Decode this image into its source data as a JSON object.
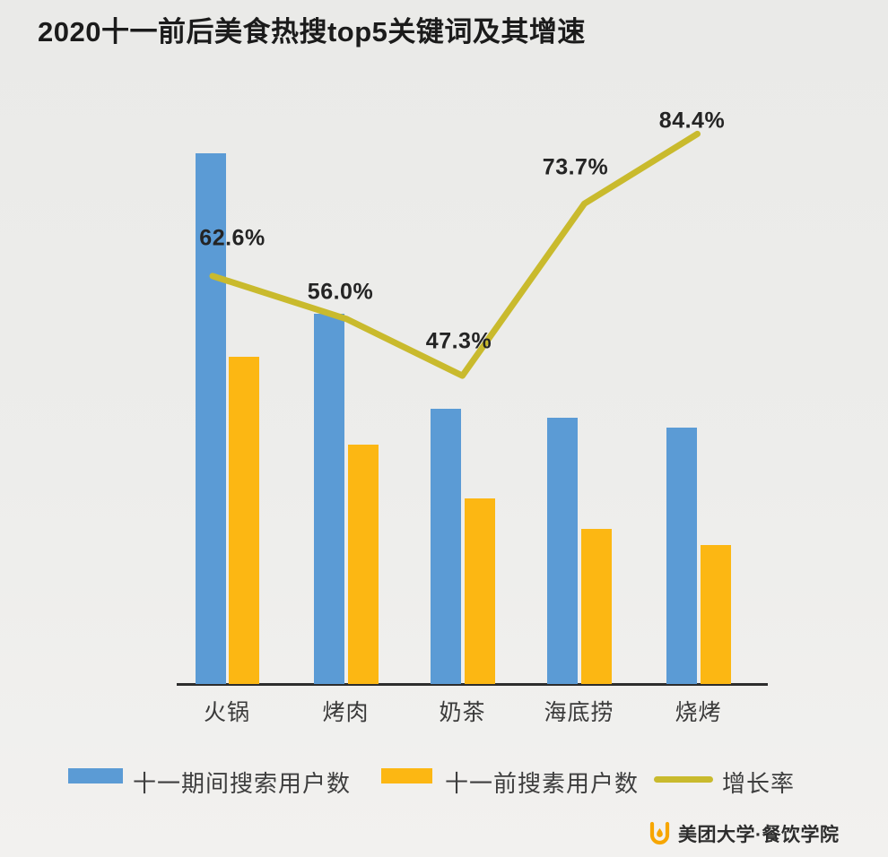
{
  "title": "2020十一前后美食热搜top5关键词及其增速",
  "chart_data": {
    "type": "bar",
    "subtype": "grouped-bars-with-line-overlay",
    "categories": [
      "火锅",
      "烤肉",
      "奶茶",
      "海底捞",
      "烧烤"
    ],
    "series": [
      {
        "name": "十一期间搜索用户数",
        "kind": "bar",
        "color": "#5b9bd5",
        "values": [
          592,
          413,
          307,
          297,
          286
        ]
      },
      {
        "name": "十一前搜素用户数",
        "kind": "bar",
        "color": "#fcb713",
        "values": [
          365,
          267,
          207,
          173,
          155
        ]
      },
      {
        "name": "增长率",
        "kind": "line",
        "color": "#c9ba2d",
        "values": [
          62.6,
          56.0,
          47.3,
          73.7,
          84.4
        ],
        "labels": [
          "62.6%",
          "56.0%",
          "47.3%",
          "73.7%",
          "84.4%"
        ]
      }
    ],
    "value_axis_note": "bar units not labeled in source; values are relative estimates",
    "ylim_percent": [
      0,
      105
    ],
    "grid": false,
    "legend_position": "bottom"
  },
  "legend": {
    "items": [
      {
        "label": "十一期间搜索用户数",
        "swatch": "blue-rect"
      },
      {
        "label": "十一前搜素用户数",
        "swatch": "yellow-rect"
      },
      {
        "label": "增长率",
        "swatch": "olive-line"
      }
    ]
  },
  "footer": {
    "brand": "美团大学·餐饮学院",
    "icon": "meituan-tulip-icon",
    "icon_color": "#f7a600"
  },
  "colors": {
    "background": "#ececea",
    "bar_blue": "#5b9bd5",
    "bar_yellow": "#fcb713",
    "growth_line": "#c9ba2d",
    "axis": "#2d2d2d",
    "title_text": "#1b1b1b",
    "label_text": "#242424"
  }
}
